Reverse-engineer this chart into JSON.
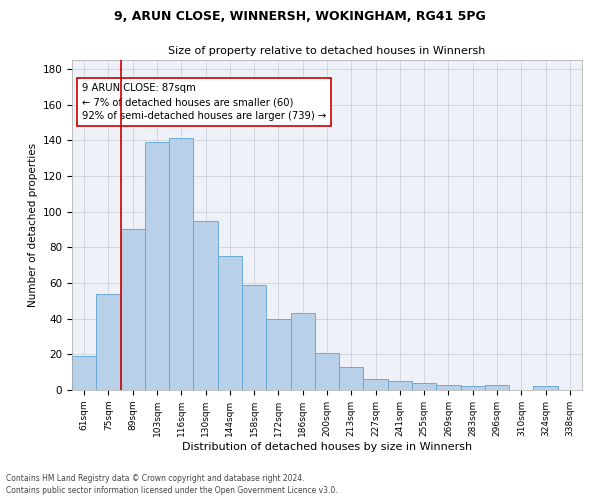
{
  "title1": "9, ARUN CLOSE, WINNERSH, WOKINGHAM, RG41 5PG",
  "title2": "Size of property relative to detached houses in Winnersh",
  "xlabel": "Distribution of detached houses by size in Winnersh",
  "ylabel": "Number of detached properties",
  "categories": [
    "61sqm",
    "75sqm",
    "89sqm",
    "103sqm",
    "116sqm",
    "130sqm",
    "144sqm",
    "158sqm",
    "172sqm",
    "186sqm",
    "200sqm",
    "213sqm",
    "227sqm",
    "241sqm",
    "255sqm",
    "269sqm",
    "283sqm",
    "296sqm",
    "310sqm",
    "324sqm",
    "338sqm"
  ],
  "values": [
    19,
    54,
    90,
    139,
    141,
    95,
    75,
    59,
    40,
    43,
    21,
    13,
    6,
    5,
    4,
    3,
    2,
    3,
    0,
    2,
    0
  ],
  "bar_color": "#b8d0e8",
  "bar_edge_color": "#6aaad4",
  "red_line_index": 1.5,
  "annotation_text": "9 ARUN CLOSE: 87sqm\n← 7% of detached houses are smaller (60)\n92% of semi-detached houses are larger (739) →",
  "annotation_box_color": "#ffffff",
  "annotation_box_edge": "#cc0000",
  "ylim": [
    0,
    185
  ],
  "yticks": [
    0,
    20,
    40,
    60,
    80,
    100,
    120,
    140,
    160,
    180
  ],
  "footnote1": "Contains HM Land Registry data © Crown copyright and database right 2024.",
  "footnote2": "Contains public sector information licensed under the Open Government Licence v3.0.",
  "bg_color": "#eef2f8",
  "grid_color": "#c8cdd6"
}
